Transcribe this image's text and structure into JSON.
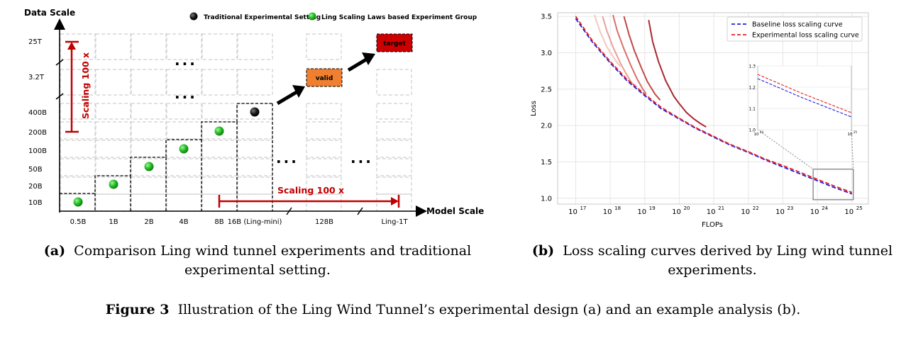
{
  "panel_a": {
    "y_axis_title": "Data Scale",
    "x_axis_title": "Model Scale",
    "legend": [
      {
        "label": "Traditional Experimental Setting",
        "color": "#111111"
      },
      {
        "label": "Ling Scaling Laws based Experiment Group",
        "color": "#22bb22"
      }
    ],
    "y_ticks": [
      "25T",
      "3.2T",
      "400B",
      "200B",
      "100B",
      "50B",
      "20B",
      "10B"
    ],
    "x_ticks": [
      "0.5B",
      "1B",
      "2B",
      "4B",
      "8B",
      "16B (Ling-mini)",
      "128B",
      "Ling-1T"
    ],
    "green_points": [
      [
        "0.5B",
        "10B"
      ],
      [
        "1B",
        "20B"
      ],
      [
        "2B",
        "50B"
      ],
      [
        "4B",
        "100B"
      ],
      [
        "8B",
        "200B"
      ]
    ],
    "black_points": [
      [
        "16B (Ling-mini)",
        "400B"
      ]
    ],
    "valid_label": "valid",
    "target_label": "target",
    "valid_color": "#f08030",
    "target_color": "#cc0000",
    "accent_color": "#c00000",
    "scaling_vertical": "Scaling 100 x",
    "scaling_horizontal": "Scaling 100 x",
    "ellipsis": "..."
  },
  "chart_data": {
    "type": "line",
    "xlabel": "FLOPs",
    "ylabel": "Loss",
    "x_scale": "log",
    "xlim": [
      3e+16,
      3e+25
    ],
    "ylim": [
      0.92,
      3.55
    ],
    "x_tick_labels": [
      "10^17",
      "10^18",
      "10^19",
      "10^20",
      "10^21",
      "10^22",
      "10^23",
      "10^24",
      "10^25"
    ],
    "y_tick_labels": [
      "1.0",
      "1.5",
      "2.0",
      "2.5",
      "3.0",
      "3.5"
    ],
    "grid": true,
    "legend_position": "top-right",
    "series": [
      {
        "name": "Baseline loss scaling curve",
        "color": "#1f1fdd",
        "x": [
          1e+17,
          3e+17,
          1e+18,
          3e+18,
          1e+19,
          3e+19,
          1e+20,
          3e+20,
          1e+21,
          3e+21,
          1e+22,
          3e+22,
          1e+23,
          3e+23,
          1e+24,
          3e+24,
          1e+25
        ],
        "y": [
          3.47,
          3.15,
          2.86,
          2.62,
          2.41,
          2.23,
          2.09,
          1.96,
          1.84,
          1.73,
          1.63,
          1.53,
          1.43,
          1.34,
          1.24,
          1.15,
          1.06
        ]
      },
      {
        "name": "Experimental loss scaling curve",
        "color": "#e82020",
        "x": [
          1e+17,
          3e+17,
          1e+18,
          3e+18,
          1e+19,
          3e+19,
          1e+20,
          3e+20,
          1e+21,
          3e+21,
          1e+22,
          3e+22,
          1e+23,
          3e+23,
          1e+24,
          3e+24,
          1e+25
        ],
        "y": [
          3.5,
          3.17,
          2.88,
          2.64,
          2.43,
          2.25,
          2.1,
          1.97,
          1.85,
          1.74,
          1.64,
          1.54,
          1.45,
          1.36,
          1.26,
          1.17,
          1.08
        ]
      }
    ],
    "training_runs": [
      {
        "color": "#f2c8c0",
        "x": [
          3.5e+17,
          5e+17,
          8e+17,
          1.2e+18,
          1.6e+18,
          2e+18
        ],
        "y": [
          3.52,
          3.3,
          3.08,
          2.95,
          2.86,
          2.81
        ]
      },
      {
        "color": "#e8a098",
        "x": [
          6e+17,
          8e+17,
          1.2e+18,
          2e+18,
          3e+18,
          4e+18,
          5e+18
        ],
        "y": [
          3.5,
          3.3,
          3.08,
          2.85,
          2.7,
          2.6,
          2.55
        ]
      },
      {
        "color": "#d87068",
        "x": [
          1.2e+18,
          1.6e+18,
          2.5e+18,
          4e+18,
          6e+18,
          9e+18,
          1.1e+19
        ],
        "y": [
          3.52,
          3.3,
          3.05,
          2.82,
          2.64,
          2.49,
          2.44
        ]
      },
      {
        "color": "#c04848",
        "x": [
          2.5e+18,
          3.5e+18,
          5e+18,
          8e+18,
          1.2e+19,
          2e+19,
          2.8e+19
        ],
        "y": [
          3.5,
          3.25,
          3.03,
          2.79,
          2.6,
          2.43,
          2.35
        ]
      },
      {
        "color": "#a82830",
        "x": [
          1.3e+19,
          1.7e+19,
          2.5e+19,
          4e+19,
          7e+19,
          1e+20,
          1.6e+20,
          2.5e+20,
          4e+20,
          6e+20
        ],
        "y": [
          3.45,
          3.15,
          2.88,
          2.62,
          2.4,
          2.3,
          2.18,
          2.1,
          2.03,
          1.98
        ]
      }
    ],
    "inset": {
      "xlim": [
        1e+24,
        1e+25
      ],
      "ylim": [
        1.0,
        1.3
      ],
      "y_tick_labels": [
        "1.0",
        "1.1",
        "1.2",
        "1.3"
      ],
      "x_tick_labels": [
        "10^24",
        "10^25"
      ]
    }
  },
  "captions": {
    "a_tag": "(a)",
    "a_text": "Comparison Ling wind tunnel experiments and traditional experimental setting.",
    "b_tag": "(b)",
    "b_text": "Loss scaling curves derived by Ling wind tunnel experiments.",
    "fig_tag": "Figure 3",
    "fig_text": "Illustration of the Ling Wind Tunnel’s experimental design (a) and an example analysis (b)."
  }
}
